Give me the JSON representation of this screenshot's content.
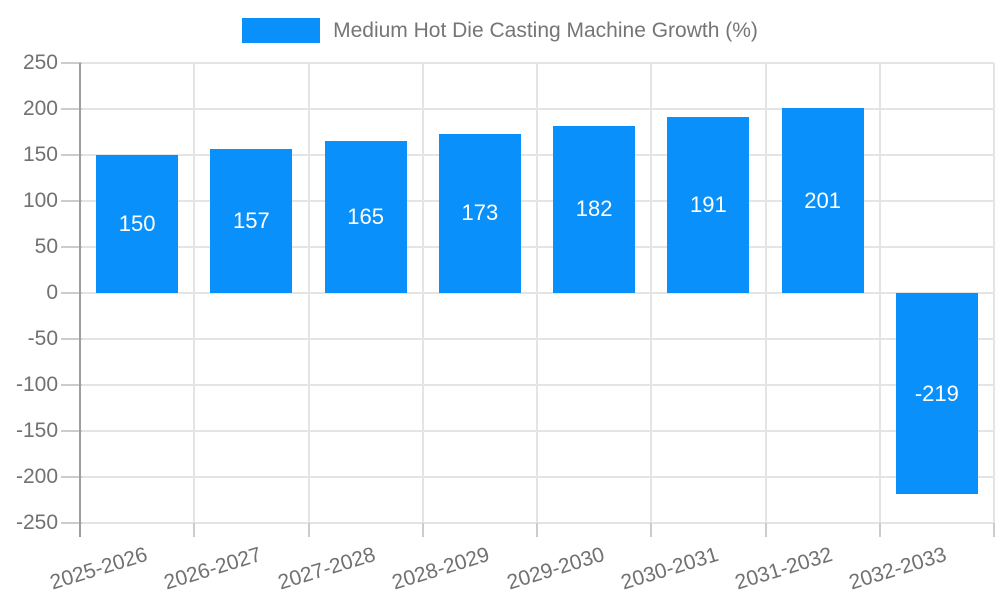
{
  "chart_data": {
    "type": "bar",
    "title": "",
    "legend": "Medium Hot Die Casting Machine Growth (%)",
    "legend_position": "top",
    "categories": [
      "2025-2026",
      "2026-2027",
      "2027-2028",
      "2028-2029",
      "2029-2030",
      "2030-2031",
      "2031-2032",
      "2032-2033"
    ],
    "values": [
      150,
      157,
      165,
      173,
      182,
      191,
      201,
      -219
    ],
    "value_labels": [
      "150",
      "157",
      "165",
      "173",
      "182",
      "191",
      "201",
      "-219"
    ],
    "xlabel": "",
    "ylabel": "",
    "ylim": [
      -250,
      250
    ],
    "ytick_step": 50,
    "yticks": [
      250,
      200,
      150,
      100,
      50,
      0,
      -50,
      -100,
      -150,
      -200,
      -250
    ],
    "grid": true,
    "colors": {
      "bar": "#0a90fa",
      "value_label": "#ffffff",
      "axis_text": "#717171",
      "legend_text": "#757575",
      "gridline": "#e4e4e4",
      "tick": "#cccccc",
      "axis_line": "#9e9e9e",
      "background": "#ffffff"
    }
  }
}
